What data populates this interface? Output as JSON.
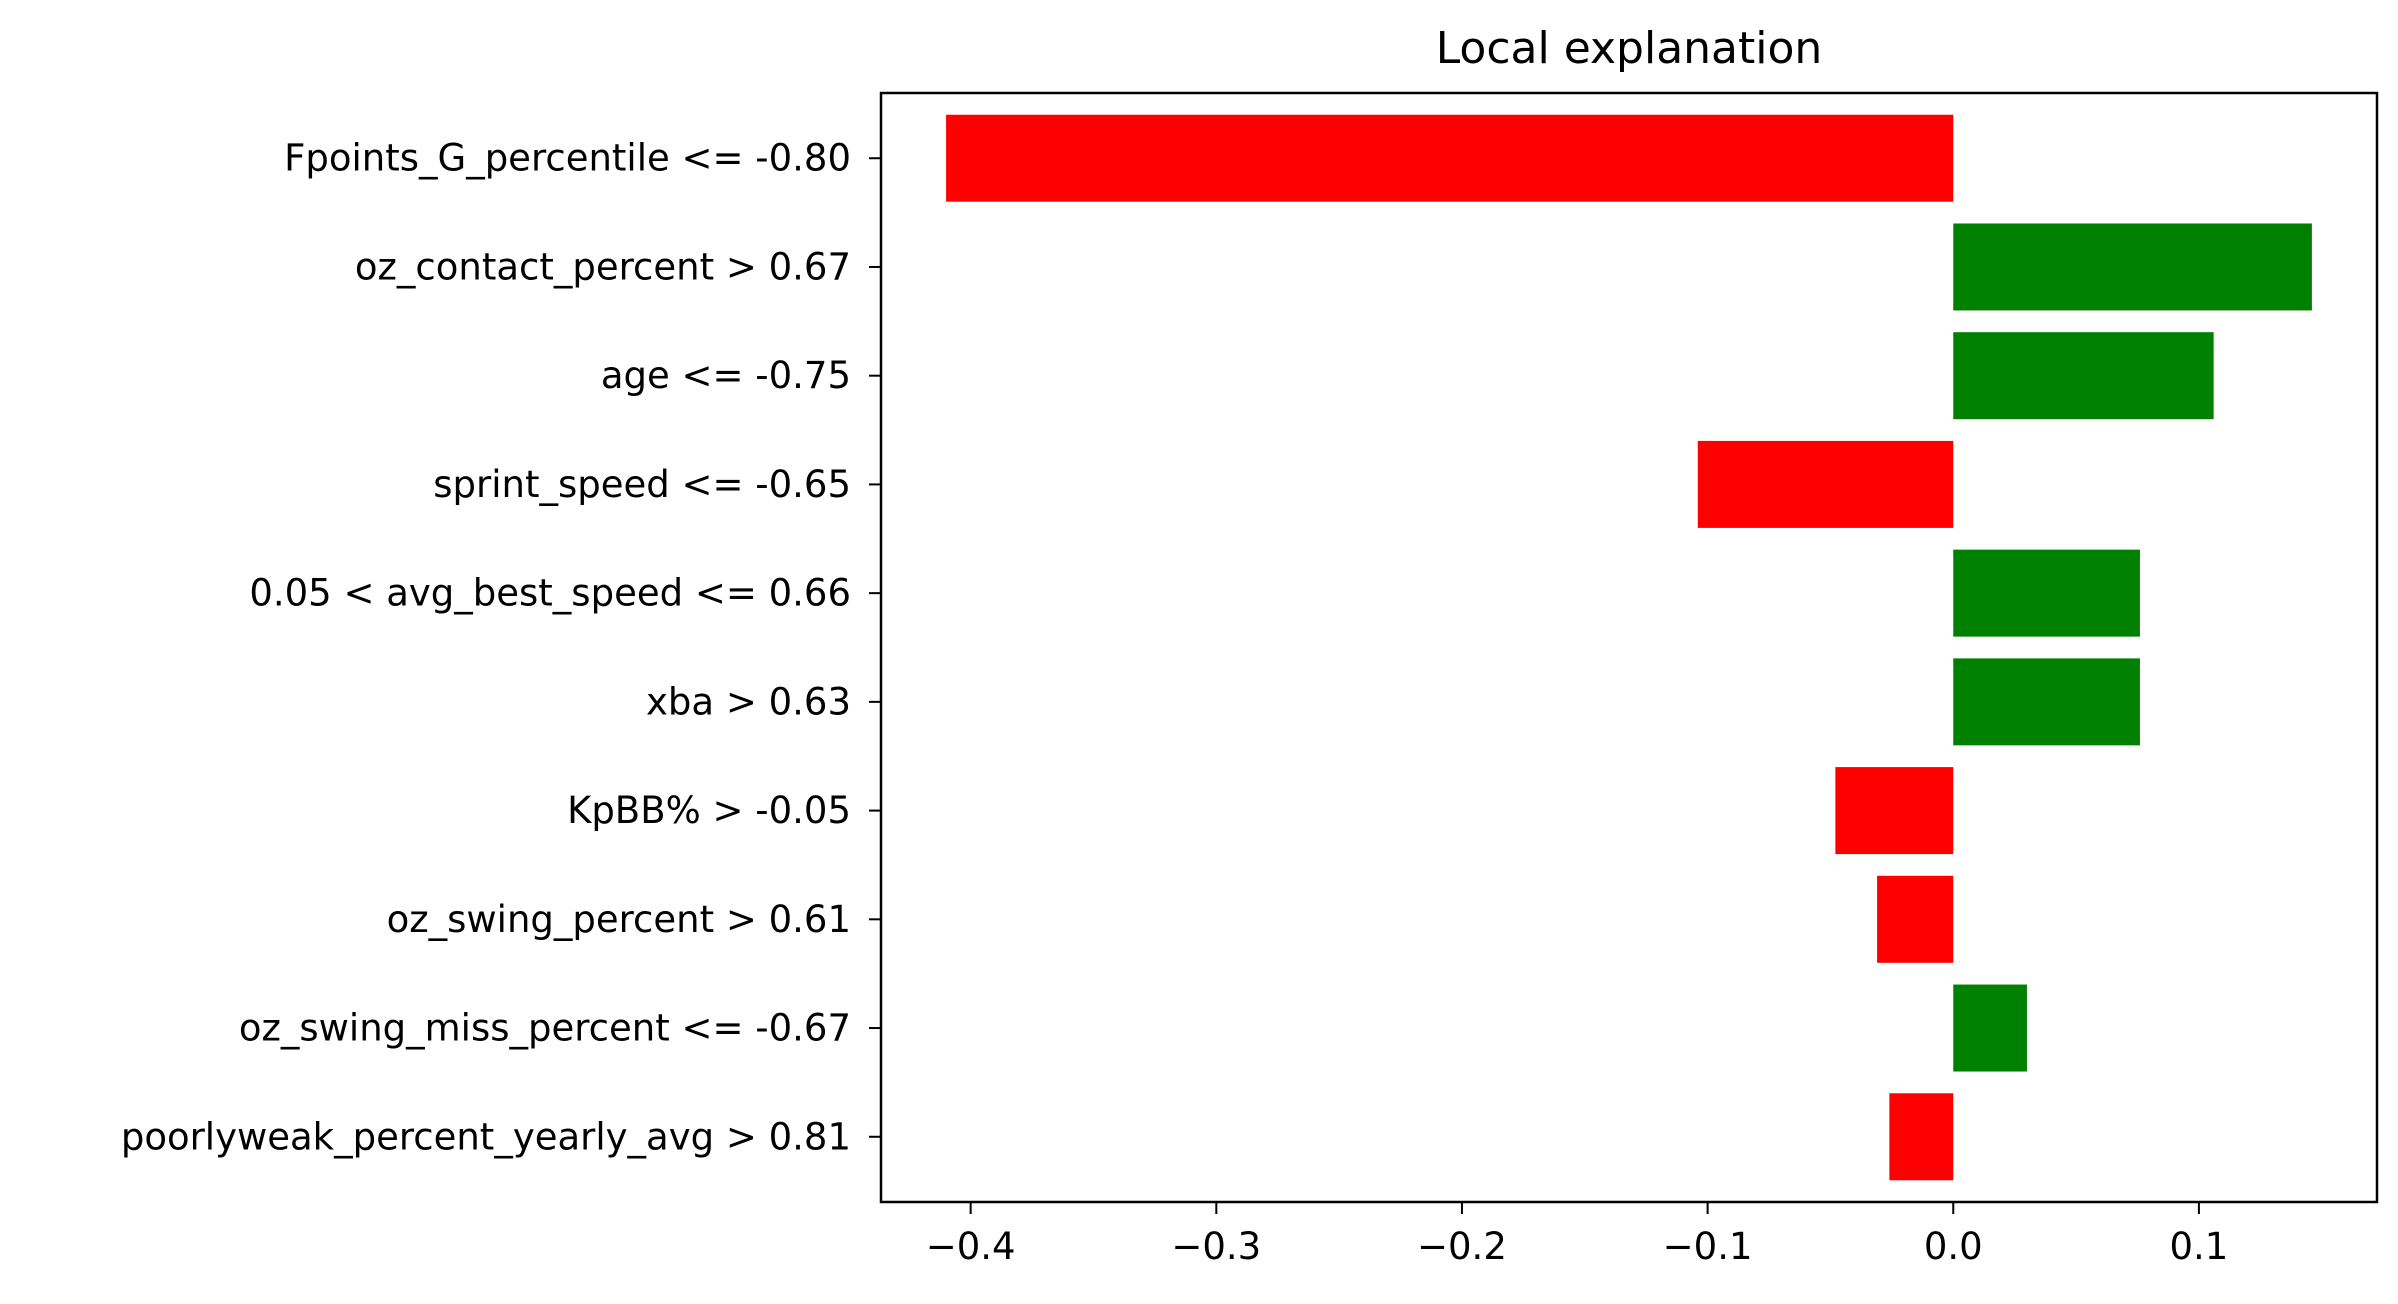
{
  "chart_data": {
    "type": "bar",
    "orientation": "horizontal",
    "title": "Local explanation",
    "xlabel": "",
    "ylabel": "",
    "categories": [
      "Fpoints_G_percentile <= -0.80",
      "oz_contact_percent > 0.67",
      "age <= -0.75",
      "sprint_speed <= -0.65",
      "0.05 < avg_best_speed <= 0.66",
      "xba > 0.63",
      "KpBB% > -0.05",
      "oz_swing_percent > 0.61",
      "oz_swing_miss_percent <= -0.67",
      "poorlyweak_percent_yearly_avg > 0.81"
    ],
    "values": [
      -0.41,
      0.146,
      0.106,
      -0.104,
      0.076,
      0.076,
      -0.048,
      -0.031,
      0.03,
      -0.026
    ],
    "xlim": [
      -0.4365,
      0.1725
    ],
    "xticks": [
      -0.4,
      -0.3,
      -0.2,
      -0.1,
      0.0,
      0.1
    ],
    "xtick_labels": [
      "−0.4",
      "−0.3",
      "−0.2",
      "−0.1",
      "0.0",
      "0.1"
    ],
    "colors": {
      "positive": "#008000",
      "negative": "#ff0000"
    },
    "grid": false,
    "legend": "none"
  }
}
